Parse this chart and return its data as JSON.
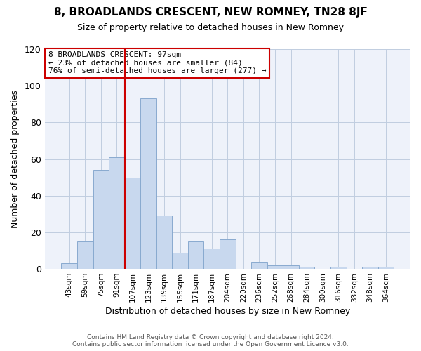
{
  "title": "8, BROADLANDS CRESCENT, NEW ROMNEY, TN28 8JF",
  "subtitle": "Size of property relative to detached houses in New Romney",
  "xlabel": "Distribution of detached houses by size in New Romney",
  "ylabel": "Number of detached properties",
  "bar_labels": [
    "43sqm",
    "59sqm",
    "75sqm",
    "91sqm",
    "107sqm",
    "123sqm",
    "139sqm",
    "155sqm",
    "171sqm",
    "187sqm",
    "204sqm",
    "220sqm",
    "236sqm",
    "252sqm",
    "268sqm",
    "284sqm",
    "300sqm",
    "316sqm",
    "332sqm",
    "348sqm",
    "364sqm"
  ],
  "bar_values": [
    3,
    15,
    54,
    61,
    50,
    93,
    29,
    9,
    15,
    11,
    16,
    0,
    4,
    2,
    2,
    1,
    0,
    1,
    0,
    1,
    1
  ],
  "bar_color": "#c8d8ee",
  "bar_edge_color": "#89aacf",
  "red_line_x": 3.5,
  "ylim": [
    0,
    120
  ],
  "yticks": [
    0,
    20,
    40,
    60,
    80,
    100,
    120
  ],
  "annotation_line1": "8 BROADLANDS CRESCENT: 97sqm",
  "annotation_line2": "← 23% of detached houses are smaller (84)",
  "annotation_line3": "76% of semi-detached houses are larger (277) →",
  "box_edge_color": "#cc0000",
  "footer1": "Contains HM Land Registry data © Crown copyright and database right 2024.",
  "footer2": "Contains public sector information licensed under the Open Government Licence v3.0.",
  "bg_color": "#ffffff",
  "plot_bg_color": "#eef2fa",
  "grid_color": "#c0cde0",
  "title_fontsize": 11,
  "subtitle_fontsize": 9,
  "xlabel_fontsize": 9,
  "ylabel_fontsize": 9,
  "tick_fontsize": 7.5,
  "footer_fontsize": 6.5
}
